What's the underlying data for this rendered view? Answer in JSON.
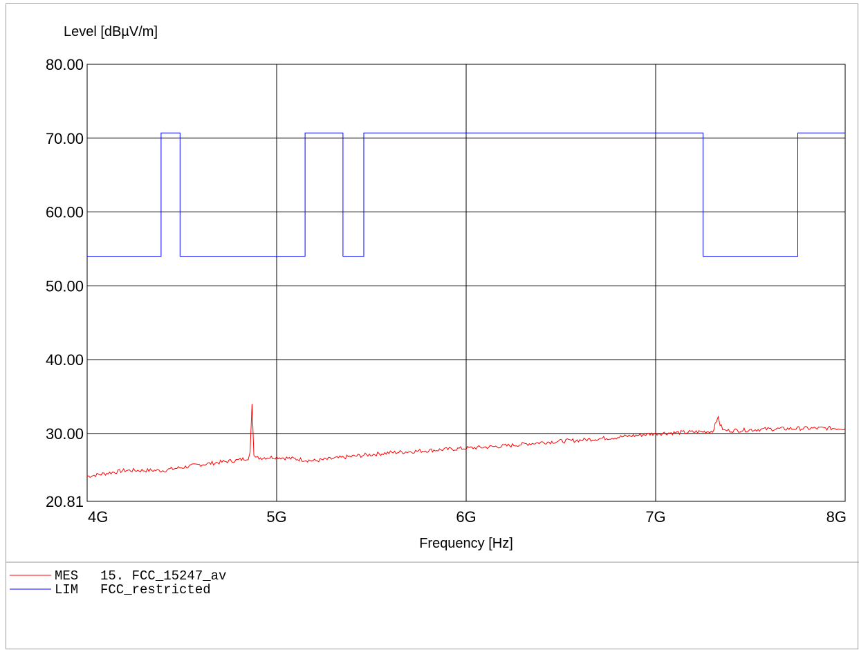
{
  "chart_data": {
    "type": "line",
    "title": "",
    "ylabel": "Level [dBµV/m]",
    "xlabel": "Frequency [Hz]",
    "xlim": [
      4000000000,
      8000000000
    ],
    "ylim": [
      20.81,
      80
    ],
    "x_ticks": [
      {
        "value": 4000000000,
        "label": "4G"
      },
      {
        "value": 5000000000,
        "label": "5G"
      },
      {
        "value": 6000000000,
        "label": "6G"
      },
      {
        "value": 7000000000,
        "label": "7G"
      },
      {
        "value": 8000000000,
        "label": "8G"
      }
    ],
    "y_ticks": [
      {
        "value": 20.81,
        "label": "20.81"
      },
      {
        "value": 30,
        "label": "30.00"
      },
      {
        "value": 40,
        "label": "40.00"
      },
      {
        "value": 50,
        "label": "50.00"
      },
      {
        "value": 60,
        "label": "60.00"
      },
      {
        "value": 70,
        "label": "70.00"
      },
      {
        "value": 80,
        "label": "80.00"
      }
    ],
    "grid": true,
    "legend_position": "bottom-left",
    "series": [
      {
        "name": "MES 15. FCC_15247_av",
        "legend_prefix": "MES",
        "legend_label": "15. FCC_15247_av",
        "color": "#ff0000",
        "style": "noisy",
        "x": [
          4000000000,
          4200000000,
          4400000000,
          4600000000,
          4800000000,
          4850000000,
          4860000000,
          4870000000,
          4880000000,
          4890000000,
          4900000000,
          5000000000,
          5200000000,
          5400000000,
          5600000000,
          5800000000,
          6000000000,
          6200000000,
          6400000000,
          6600000000,
          6800000000,
          7000000000,
          7200000000,
          7300000000,
          7320000000,
          7330000000,
          7340000000,
          7360000000,
          7400000000,
          7600000000,
          7800000000,
          8000000000
        ],
        "y": [
          24.2,
          25.0,
          25.0,
          25.8,
          26.4,
          26.7,
          27.5,
          34.0,
          27.0,
          26.6,
          26.7,
          26.8,
          26.3,
          26.9,
          27.4,
          27.7,
          28.0,
          28.3,
          28.8,
          29.1,
          29.5,
          30.0,
          30.2,
          30.3,
          31.5,
          32.4,
          31.2,
          30.4,
          30.4,
          30.6,
          30.7,
          30.7
        ]
      },
      {
        "name": "LIM FCC_restricted",
        "legend_prefix": "LIM",
        "legend_label": "FCC_restricted",
        "color": "#0000ff",
        "style": "step",
        "x": [
          4000000000,
          4390000000,
          4390000000,
          4490000000,
          4490000000,
          5150000000,
          5150000000,
          5350000000,
          5350000000,
          5460000000,
          5460000000,
          7250000000,
          7250000000,
          7750000000,
          7750000000,
          8000000000
        ],
        "y": [
          54,
          54,
          70.7,
          70.7,
          54,
          54,
          70.7,
          70.7,
          54,
          54,
          70.7,
          70.7,
          54,
          54,
          70.7,
          70.7
        ]
      }
    ]
  }
}
